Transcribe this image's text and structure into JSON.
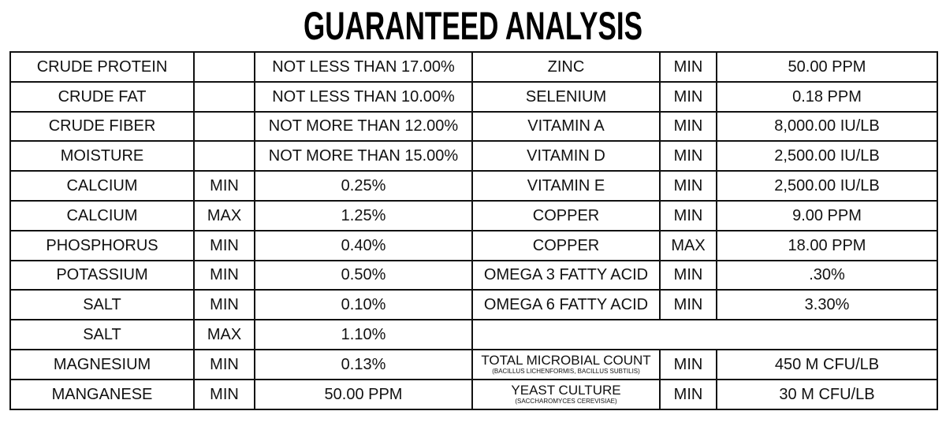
{
  "title": "GUARANTEED ANALYSIS",
  "left_rows": [
    {
      "name": "CRUDE PROTEIN",
      "value": "NOT LESS THAN 17.00%"
    },
    {
      "name": "CRUDE FAT",
      "value": "NOT LESS THAN 10.00%"
    },
    {
      "name": "CRUDE FIBER",
      "value": "NOT MORE THAN 12.00%"
    },
    {
      "name": "MOISTURE",
      "value": "NOT MORE THAN 15.00%"
    },
    {
      "name": "CALCIUM",
      "qualifier": "MIN",
      "value": "0.25%"
    },
    {
      "name": "CALCIUM",
      "qualifier": "MAX",
      "value": "1.25%"
    },
    {
      "name": "PHOSPHORUS",
      "qualifier": "MIN",
      "value": "0.40%"
    },
    {
      "name": "POTASSIUM",
      "qualifier": "MIN",
      "value": "0.50%"
    },
    {
      "name": "SALT",
      "qualifier": "MIN",
      "value": "0.10%"
    },
    {
      "name": "SALT",
      "qualifier": "MAX",
      "value": "1.10%"
    },
    {
      "name": "MAGNESIUM",
      "qualifier": "MIN",
      "value": "0.13%"
    },
    {
      "name": "MANGANESE",
      "qualifier": "MIN",
      "value": "50.00 PPM"
    }
  ],
  "right_rows": [
    {
      "name": "ZINC",
      "qualifier": "MIN",
      "value": "50.00 PPM"
    },
    {
      "name": "SELENIUM",
      "qualifier": "MIN",
      "value": "0.18 PPM"
    },
    {
      "name": "VITAMIN A",
      "qualifier": "MIN",
      "value": "8,000.00 IU/LB"
    },
    {
      "name": "VITAMIN D",
      "qualifier": "MIN",
      "value": "2,500.00 IU/LB"
    },
    {
      "name": "VITAMIN E",
      "qualifier": "MIN",
      "value": "2,500.00 IU/LB"
    },
    {
      "name": "COPPER",
      "qualifier": "MIN",
      "value": "9.00 PPM"
    },
    {
      "name": "COPPER",
      "qualifier": "MAX",
      "value": "18.00 PPM"
    },
    {
      "name": "OMEGA 3 FATTY ACID",
      "qualifier": "MIN",
      "value": ".30%"
    },
    {
      "name": "OMEGA 6 FATTY ACID",
      "qualifier": "MIN",
      "value": "3.30%"
    }
  ],
  "right_footer": [
    {
      "name": "TOTAL MICROBIAL COUNT",
      "note": "(BACILLUS LICHENFORMIS, BACILLUS SUBTILIS)",
      "qualifier": "MIN",
      "value": "450 M CFU/LB"
    },
    {
      "name": "YEAST CULTURE",
      "note": "(SACCHAROMYCES CEREVISIAE)",
      "qualifier": "MIN",
      "value": "30 M CFU/LB"
    }
  ]
}
